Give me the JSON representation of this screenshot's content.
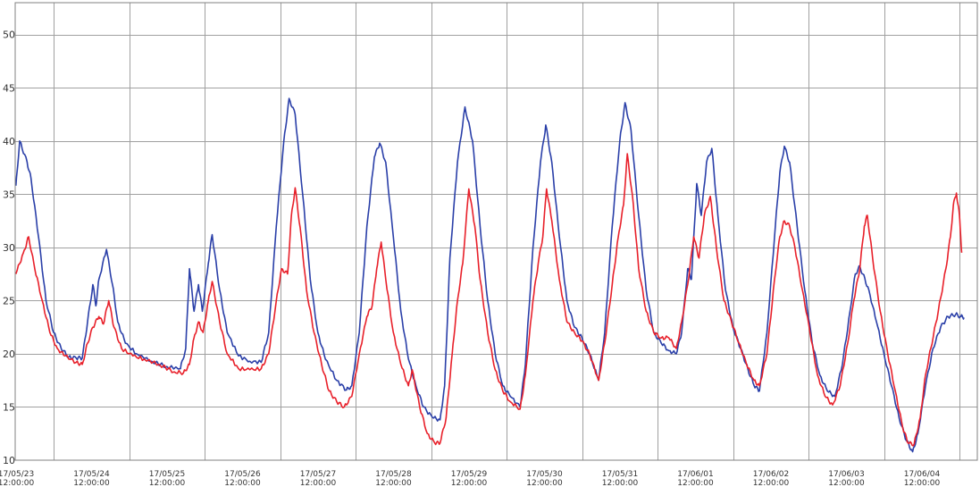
{
  "chart_data": {
    "type": "line",
    "title": "",
    "xlabel": "",
    "ylabel": "",
    "ylim": [
      10,
      53
    ],
    "yticks": [
      10,
      15,
      20,
      25,
      30,
      35,
      40,
      45,
      50
    ],
    "x_range_days": [
      -0.5,
      12.3
    ],
    "x_tick_labels": [
      {
        "date": "17/05/23",
        "time": "12:00:00"
      },
      {
        "date": "17/05/24",
        "time": "12:00:00"
      },
      {
        "date": "17/05/25",
        "time": "12:00:00"
      },
      {
        "date": "17/05/26",
        "time": "12:00:00"
      },
      {
        "date": "17/05/27",
        "time": "12:00:00"
      },
      {
        "date": "17/05/28",
        "time": "12:00:00"
      },
      {
        "date": "17/05/29",
        "time": "12:00:00"
      },
      {
        "date": "17/05/30",
        "time": "12:00:00"
      },
      {
        "date": "17/05/31",
        "time": "12:00:00"
      },
      {
        "date": "17/06/01",
        "time": "12:00:00"
      },
      {
        "date": "17/06/02",
        "time": "12:00:00"
      },
      {
        "date": "17/06/03",
        "time": "12:00:00"
      },
      {
        "date": "17/06/04",
        "time": "12:00:00"
      }
    ],
    "grid": true,
    "legend": "none",
    "series": [
      {
        "color": "#2a3fa8",
        "points": [
          [
            -0.5,
            35.8
          ],
          [
            -0.45,
            40.0
          ],
          [
            -0.35,
            38.0
          ],
          [
            -0.3,
            36.5
          ],
          [
            -0.2,
            31.0
          ],
          [
            -0.1,
            25.0
          ],
          [
            0.0,
            22.0
          ],
          [
            0.1,
            20.5
          ],
          [
            0.2,
            19.7
          ],
          [
            0.3,
            19.6
          ],
          [
            0.38,
            19.6
          ],
          [
            0.45,
            23.0
          ],
          [
            0.52,
            26.5
          ],
          [
            0.56,
            24.5
          ],
          [
            0.6,
            27.0
          ],
          [
            0.7,
            29.8
          ],
          [
            0.78,
            26.5
          ],
          [
            0.85,
            23.0
          ],
          [
            0.95,
            21.0
          ],
          [
            1.1,
            20.0
          ],
          [
            1.3,
            19.3
          ],
          [
            1.5,
            18.8
          ],
          [
            1.68,
            18.6
          ],
          [
            1.75,
            20.5
          ],
          [
            1.8,
            28.0
          ],
          [
            1.86,
            24.0
          ],
          [
            1.92,
            26.5
          ],
          [
            1.97,
            24.0
          ],
          [
            2.05,
            28.5
          ],
          [
            2.1,
            31.2
          ],
          [
            2.2,
            26.0
          ],
          [
            2.3,
            22.0
          ],
          [
            2.45,
            19.8
          ],
          [
            2.6,
            19.3
          ],
          [
            2.75,
            19.2
          ],
          [
            2.85,
            22.0
          ],
          [
            2.95,
            32.0
          ],
          [
            3.05,
            40.0
          ],
          [
            3.12,
            44.0
          ],
          [
            3.2,
            42.5
          ],
          [
            3.3,
            35.0
          ],
          [
            3.4,
            27.0
          ],
          [
            3.5,
            22.0
          ],
          [
            3.6,
            19.5
          ],
          [
            3.75,
            17.5
          ],
          [
            3.88,
            16.6
          ],
          [
            3.95,
            17.0
          ],
          [
            4.05,
            22.0
          ],
          [
            4.15,
            32.0
          ],
          [
            4.25,
            38.5
          ],
          [
            4.32,
            39.8
          ],
          [
            4.4,
            38.0
          ],
          [
            4.5,
            31.0
          ],
          [
            4.6,
            24.0
          ],
          [
            4.7,
            19.5
          ],
          [
            4.8,
            17.0
          ],
          [
            4.9,
            15.0
          ],
          [
            5.02,
            14.0
          ],
          [
            5.12,
            13.8
          ],
          [
            5.18,
            17.0
          ],
          [
            5.25,
            29.0
          ],
          [
            5.35,
            38.0
          ],
          [
            5.45,
            43.2
          ],
          [
            5.55,
            40.0
          ],
          [
            5.65,
            32.0
          ],
          [
            5.75,
            25.0
          ],
          [
            5.85,
            20.0
          ],
          [
            5.95,
            17.0
          ],
          [
            6.05,
            16.0
          ],
          [
            6.18,
            15.0
          ],
          [
            6.25,
            19.0
          ],
          [
            6.35,
            30.0
          ],
          [
            6.45,
            38.0
          ],
          [
            6.52,
            41.5
          ],
          [
            6.6,
            38.0
          ],
          [
            6.7,
            31.0
          ],
          [
            6.8,
            25.0
          ],
          [
            6.9,
            22.5
          ],
          [
            7.0,
            21.5
          ],
          [
            7.1,
            20.0
          ],
          [
            7.22,
            17.5
          ],
          [
            7.3,
            22.0
          ],
          [
            7.4,
            32.0
          ],
          [
            7.5,
            40.0
          ],
          [
            7.57,
            43.6
          ],
          [
            7.65,
            41.0
          ],
          [
            7.75,
            33.0
          ],
          [
            7.85,
            26.0
          ],
          [
            7.95,
            22.0
          ],
          [
            8.05,
            21.0
          ],
          [
            8.15,
            20.3
          ],
          [
            8.25,
            20.0
          ],
          [
            8.32,
            22.0
          ],
          [
            8.4,
            28.0
          ],
          [
            8.45,
            27.0
          ],
          [
            8.52,
            36.0
          ],
          [
            8.58,
            33.0
          ],
          [
            8.65,
            38.0
          ],
          [
            8.72,
            39.3
          ],
          [
            8.8,
            33.0
          ],
          [
            8.9,
            26.0
          ],
          [
            9.0,
            22.5
          ],
          [
            9.1,
            20.5
          ],
          [
            9.2,
            18.5
          ],
          [
            9.28,
            17.0
          ],
          [
            9.35,
            16.5
          ],
          [
            9.45,
            22.0
          ],
          [
            9.55,
            31.0
          ],
          [
            9.62,
            37.0
          ],
          [
            9.68,
            39.5
          ],
          [
            9.75,
            38.0
          ],
          [
            9.85,
            32.0
          ],
          [
            9.95,
            26.0
          ],
          [
            10.05,
            21.0
          ],
          [
            10.15,
            18.0
          ],
          [
            10.25,
            16.5
          ],
          [
            10.35,
            16.0
          ],
          [
            10.45,
            19.0
          ],
          [
            10.55,
            24.0
          ],
          [
            10.62,
            27.5
          ],
          [
            10.68,
            28.2
          ],
          [
            10.72,
            27.5
          ],
          [
            10.8,
            26.0
          ],
          [
            10.9,
            23.0
          ],
          [
            11.0,
            20.0
          ],
          [
            11.1,
            17.0
          ],
          [
            11.2,
            14.0
          ],
          [
            11.3,
            11.8
          ],
          [
            11.38,
            10.8
          ],
          [
            11.45,
            12.5
          ],
          [
            11.55,
            17.0
          ],
          [
            11.65,
            20.5
          ],
          [
            11.75,
            22.5
          ],
          [
            11.85,
            23.5
          ],
          [
            11.95,
            23.7
          ],
          [
            12.02,
            23.5
          ],
          [
            12.06,
            23.4
          ]
        ]
      },
      {
        "color": "#e8202a",
        "points": [
          [
            -0.5,
            27.5
          ],
          [
            -0.4,
            29.5
          ],
          [
            -0.33,
            31.0
          ],
          [
            -0.25,
            28.0
          ],
          [
            -0.15,
            25.0
          ],
          [
            -0.05,
            22.0
          ],
          [
            0.05,
            20.5
          ],
          [
            0.15,
            19.8
          ],
          [
            0.3,
            19.2
          ],
          [
            0.38,
            19.0
          ],
          [
            0.45,
            21.0
          ],
          [
            0.52,
            22.5
          ],
          [
            0.6,
            23.5
          ],
          [
            0.66,
            22.8
          ],
          [
            0.73,
            25.0
          ],
          [
            0.8,
            22.5
          ],
          [
            0.9,
            20.5
          ],
          [
            1.05,
            19.8
          ],
          [
            1.2,
            19.5
          ],
          [
            1.4,
            19.0
          ],
          [
            1.6,
            18.3
          ],
          [
            1.72,
            18.2
          ],
          [
            1.8,
            19.0
          ],
          [
            1.86,
            21.5
          ],
          [
            1.92,
            23.0
          ],
          [
            1.98,
            22.0
          ],
          [
            2.05,
            25.0
          ],
          [
            2.1,
            26.8
          ],
          [
            2.2,
            23.0
          ],
          [
            2.3,
            20.0
          ],
          [
            2.45,
            18.6
          ],
          [
            2.6,
            18.5
          ],
          [
            2.75,
            18.6
          ],
          [
            2.85,
            20.0
          ],
          [
            2.95,
            25.0
          ],
          [
            3.02,
            28.0
          ],
          [
            3.1,
            27.5
          ],
          [
            3.15,
            33.0
          ],
          [
            3.2,
            35.6
          ],
          [
            3.28,
            31.0
          ],
          [
            3.35,
            26.0
          ],
          [
            3.45,
            22.0
          ],
          [
            3.55,
            19.0
          ],
          [
            3.65,
            16.5
          ],
          [
            3.75,
            15.5
          ],
          [
            3.85,
            15.0
          ],
          [
            3.95,
            16.0
          ],
          [
            4.05,
            20.0
          ],
          [
            4.15,
            23.5
          ],
          [
            4.22,
            24.5
          ],
          [
            4.28,
            28.0
          ],
          [
            4.34,
            30.5
          ],
          [
            4.4,
            27.0
          ],
          [
            4.5,
            22.0
          ],
          [
            4.6,
            19.0
          ],
          [
            4.7,
            17.0
          ],
          [
            4.75,
            18.5
          ],
          [
            4.85,
            15.0
          ],
          [
            4.95,
            12.5
          ],
          [
            5.05,
            11.6
          ],
          [
            5.12,
            11.6
          ],
          [
            5.2,
            14.0
          ],
          [
            5.28,
            20.0
          ],
          [
            5.35,
            25.0
          ],
          [
            5.42,
            28.5
          ],
          [
            5.5,
            35.5
          ],
          [
            5.58,
            32.0
          ],
          [
            5.65,
            27.0
          ],
          [
            5.75,
            22.0
          ],
          [
            5.85,
            18.5
          ],
          [
            5.95,
            16.5
          ],
          [
            6.05,
            15.5
          ],
          [
            6.18,
            14.8
          ],
          [
            6.25,
            18.0
          ],
          [
            6.35,
            25.0
          ],
          [
            6.42,
            28.5
          ],
          [
            6.48,
            31.0
          ],
          [
            6.53,
            35.5
          ],
          [
            6.6,
            32.5
          ],
          [
            6.7,
            27.0
          ],
          [
            6.8,
            23.0
          ],
          [
            6.9,
            22.0
          ],
          [
            7.0,
            21.2
          ],
          [
            7.1,
            20.0
          ],
          [
            7.22,
            17.5
          ],
          [
            7.3,
            21.0
          ],
          [
            7.4,
            26.5
          ],
          [
            7.48,
            31.0
          ],
          [
            7.55,
            34.0
          ],
          [
            7.6,
            38.8
          ],
          [
            7.68,
            34.0
          ],
          [
            7.75,
            28.0
          ],
          [
            7.85,
            24.0
          ],
          [
            7.95,
            22.0
          ],
          [
            8.05,
            21.5
          ],
          [
            8.15,
            21.5
          ],
          [
            8.25,
            20.5
          ],
          [
            8.32,
            23.0
          ],
          [
            8.4,
            26.5
          ],
          [
            8.48,
            31.0
          ],
          [
            8.55,
            29.0
          ],
          [
            8.62,
            33.0
          ],
          [
            8.7,
            34.8
          ],
          [
            8.78,
            30.0
          ],
          [
            8.88,
            25.0
          ],
          [
            8.98,
            23.0
          ],
          [
            9.08,
            21.0
          ],
          [
            9.18,
            19.0
          ],
          [
            9.28,
            17.5
          ],
          [
            9.35,
            17.0
          ],
          [
            9.45,
            20.0
          ],
          [
            9.55,
            27.0
          ],
          [
            9.62,
            31.0
          ],
          [
            9.68,
            32.5
          ],
          [
            9.75,
            32.0
          ],
          [
            9.82,
            30.0
          ],
          [
            9.92,
            26.0
          ],
          [
            10.02,
            22.0
          ],
          [
            10.12,
            18.0
          ],
          [
            10.22,
            16.0
          ],
          [
            10.32,
            15.2
          ],
          [
            10.42,
            17.0
          ],
          [
            10.52,
            21.0
          ],
          [
            10.6,
            25.0
          ],
          [
            10.68,
            28.0
          ],
          [
            10.74,
            32.0
          ],
          [
            10.78,
            33.0
          ],
          [
            10.85,
            29.0
          ],
          [
            10.95,
            24.0
          ],
          [
            11.05,
            20.0
          ],
          [
            11.15,
            16.5
          ],
          [
            11.25,
            13.0
          ],
          [
            11.32,
            11.6
          ],
          [
            11.4,
            11.5
          ],
          [
            11.48,
            14.0
          ],
          [
            11.55,
            18.0
          ],
          [
            11.62,
            20.5
          ],
          [
            11.72,
            24.0
          ],
          [
            11.82,
            28.0
          ],
          [
            11.88,
            31.0
          ],
          [
            11.92,
            34.0
          ],
          [
            11.96,
            35.1
          ],
          [
            12.0,
            33.0
          ],
          [
            12.03,
            29.5
          ]
        ]
      }
    ]
  }
}
